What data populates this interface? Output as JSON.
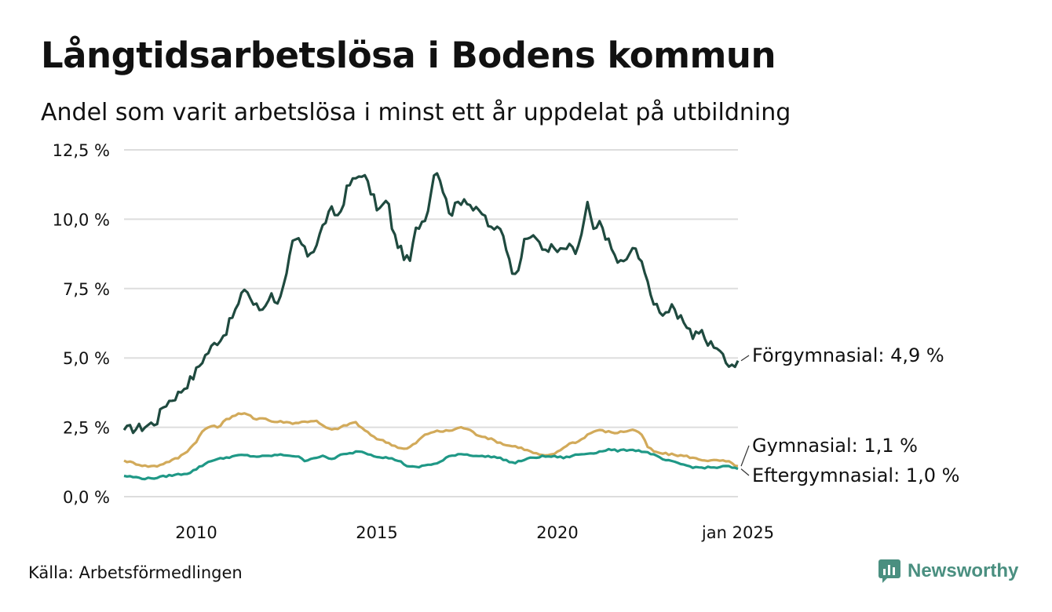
{
  "title": "Långtidsarbetslösa i Bodens kommun",
  "subtitle": "Andel som varit arbetslösa i minst ett år uppdelat på utbildning",
  "source": "Källa: Arbetsförmedlingen",
  "brand": "Newsworthy",
  "icons": {
    "brand_logo": "newsworthy-logo-icon"
  },
  "colors": {
    "forgymnasial": "#1f4a3f",
    "gymnasial": "#d2aa5a",
    "eftergymnasial": "#1f9886",
    "grid": "#dddddd",
    "brand": "#4a8f80"
  },
  "chart_data": {
    "type": "line",
    "title": "Långtidsarbetslösa i Bodens kommun",
    "subtitle": "Andel som varit arbetslösa i minst ett år uppdelat på utbildning",
    "xlabel": "",
    "ylabel": "",
    "x_start": [
      2008,
      1
    ],
    "x_end": [
      2025,
      1
    ],
    "x_frequency": "monthly",
    "xlim": [
      2008.0,
      2025.0
    ],
    "ylim": [
      0,
      12.5
    ],
    "y_ticks": [
      0,
      2.5,
      5.0,
      7.5,
      10.0,
      12.5
    ],
    "y_tick_labels": [
      "0,0 %",
      "2,5 %",
      "5,0 %",
      "7,5 %",
      "10,0 %",
      "12,5 %"
    ],
    "x_ticks": [
      2010,
      2015,
      2020,
      2025
    ],
    "x_tick_labels": [
      "2010",
      "2015",
      "2020",
      "jan 2025"
    ],
    "grid": true,
    "series": [
      {
        "name": "Förgymnasial",
        "label": "Förgymnasial: 4,9 %",
        "last_value": 4.9,
        "color": "#1f4a3f",
        "anchors": [
          [
            2008.0,
            2.4
          ],
          [
            2008.5,
            2.5
          ],
          [
            2008.9,
            2.7
          ],
          [
            2009.1,
            3.3
          ],
          [
            2009.5,
            3.7
          ],
          [
            2009.9,
            4.3
          ],
          [
            2010.2,
            5.0
          ],
          [
            2010.5,
            5.5
          ],
          [
            2010.8,
            5.9
          ],
          [
            2011.0,
            6.5
          ],
          [
            2011.2,
            7.0
          ],
          [
            2011.35,
            7.6
          ],
          [
            2011.55,
            7.0
          ],
          [
            2011.8,
            6.7
          ],
          [
            2012.05,
            7.3
          ],
          [
            2012.3,
            7.0
          ],
          [
            2012.5,
            7.9
          ],
          [
            2012.65,
            9.1
          ],
          [
            2012.85,
            9.3
          ],
          [
            2013.05,
            8.7
          ],
          [
            2013.3,
            9.0
          ],
          [
            2013.55,
            9.9
          ],
          [
            2013.75,
            10.3
          ],
          [
            2013.95,
            10.1
          ],
          [
            2014.2,
            11.2
          ],
          [
            2014.45,
            11.5
          ],
          [
            2014.6,
            11.7
          ],
          [
            2014.8,
            11.1
          ],
          [
            2015.05,
            10.3
          ],
          [
            2015.3,
            10.7
          ],
          [
            2015.45,
            9.5
          ],
          [
            2015.65,
            8.9
          ],
          [
            2015.9,
            8.4
          ],
          [
            2016.1,
            9.7
          ],
          [
            2016.3,
            10.0
          ],
          [
            2016.45,
            10.5
          ],
          [
            2016.6,
            11.9
          ],
          [
            2016.75,
            11.5
          ],
          [
            2016.9,
            10.7
          ],
          [
            2017.05,
            10.2
          ],
          [
            2017.25,
            10.6
          ],
          [
            2017.45,
            10.8
          ],
          [
            2017.7,
            10.3
          ],
          [
            2017.95,
            10.2
          ],
          [
            2018.2,
            9.5
          ],
          [
            2018.4,
            9.8
          ],
          [
            2018.55,
            9.3
          ],
          [
            2018.7,
            8.2
          ],
          [
            2018.9,
            8.2
          ],
          [
            2019.1,
            9.2
          ],
          [
            2019.35,
            9.5
          ],
          [
            2019.55,
            8.9
          ],
          [
            2019.8,
            9.0
          ],
          [
            2020.05,
            8.8
          ],
          [
            2020.3,
            9.0
          ],
          [
            2020.5,
            8.8
          ],
          [
            2020.65,
            9.3
          ],
          [
            2020.85,
            10.6
          ],
          [
            2021.0,
            9.5
          ],
          [
            2021.2,
            9.9
          ],
          [
            2021.4,
            9.2
          ],
          [
            2021.65,
            8.5
          ],
          [
            2021.85,
            8.4
          ],
          [
            2022.0,
            8.8
          ],
          [
            2022.2,
            8.9
          ],
          [
            2022.35,
            8.5
          ],
          [
            2022.55,
            7.3
          ],
          [
            2022.75,
            6.9
          ],
          [
            2022.95,
            6.6
          ],
          [
            2023.15,
            6.8
          ],
          [
            2023.35,
            6.4
          ],
          [
            2023.55,
            6.3
          ],
          [
            2023.75,
            5.8
          ],
          [
            2023.95,
            6.0
          ],
          [
            2024.15,
            5.5
          ],
          [
            2024.35,
            5.5
          ],
          [
            2024.5,
            5.3
          ],
          [
            2024.65,
            4.8
          ],
          [
            2024.85,
            4.9
          ],
          [
            2024.95,
            4.6
          ],
          [
            2025.0,
            4.9
          ]
        ]
      },
      {
        "name": "Gymnasial",
        "label": "Gymnasial: 1,1 %",
        "last_value": 1.1,
        "color": "#d2aa5a",
        "anchors": [
          [
            2008.0,
            1.3
          ],
          [
            2008.3,
            1.2
          ],
          [
            2008.6,
            1.1
          ],
          [
            2008.9,
            1.1
          ],
          [
            2009.2,
            1.25
          ],
          [
            2009.5,
            1.4
          ],
          [
            2009.8,
            1.7
          ],
          [
            2010.0,
            2.0
          ],
          [
            2010.2,
            2.4
          ],
          [
            2010.4,
            2.55
          ],
          [
            2010.6,
            2.5
          ],
          [
            2010.8,
            2.75
          ],
          [
            2011.0,
            2.9
          ],
          [
            2011.2,
            3.0
          ],
          [
            2011.45,
            2.95
          ],
          [
            2011.6,
            2.8
          ],
          [
            2011.85,
            2.85
          ],
          [
            2012.1,
            2.7
          ],
          [
            2012.4,
            2.7
          ],
          [
            2012.7,
            2.65
          ],
          [
            2013.0,
            2.7
          ],
          [
            2013.3,
            2.75
          ],
          [
            2013.5,
            2.55
          ],
          [
            2013.75,
            2.4
          ],
          [
            2014.0,
            2.5
          ],
          [
            2014.2,
            2.6
          ],
          [
            2014.4,
            2.7
          ],
          [
            2014.55,
            2.5
          ],
          [
            2014.75,
            2.3
          ],
          [
            2015.0,
            2.1
          ],
          [
            2015.3,
            1.95
          ],
          [
            2015.55,
            1.8
          ],
          [
            2015.8,
            1.7
          ],
          [
            2016.05,
            1.9
          ],
          [
            2016.3,
            2.2
          ],
          [
            2016.55,
            2.35
          ],
          [
            2016.8,
            2.35
          ],
          [
            2017.1,
            2.4
          ],
          [
            2017.3,
            2.5
          ],
          [
            2017.5,
            2.45
          ],
          [
            2017.75,
            2.25
          ],
          [
            2018.0,
            2.15
          ],
          [
            2018.3,
            2.0
          ],
          [
            2018.6,
            1.85
          ],
          [
            2018.9,
            1.8
          ],
          [
            2019.1,
            1.7
          ],
          [
            2019.4,
            1.55
          ],
          [
            2019.7,
            1.45
          ],
          [
            2020.0,
            1.6
          ],
          [
            2020.3,
            1.9
          ],
          [
            2020.6,
            2.0
          ],
          [
            2020.85,
            2.25
          ],
          [
            2021.1,
            2.4
          ],
          [
            2021.35,
            2.35
          ],
          [
            2021.6,
            2.3
          ],
          [
            2021.85,
            2.35
          ],
          [
            2022.0,
            2.4
          ],
          [
            2022.15,
            2.4
          ],
          [
            2022.3,
            2.3
          ],
          [
            2022.5,
            1.8
          ],
          [
            2022.7,
            1.6
          ],
          [
            2022.95,
            1.55
          ],
          [
            2023.3,
            1.5
          ],
          [
            2023.6,
            1.45
          ],
          [
            2023.9,
            1.35
          ],
          [
            2024.2,
            1.3
          ],
          [
            2024.5,
            1.3
          ],
          [
            2024.75,
            1.25
          ],
          [
            2024.9,
            1.15
          ],
          [
            2025.0,
            1.1
          ]
        ]
      },
      {
        "name": "Eftergymnasial",
        "label": "Eftergymnasial: 1,0 %",
        "last_value": 1.0,
        "color": "#1f9886",
        "anchors": [
          [
            2008.0,
            0.75
          ],
          [
            2008.3,
            0.7
          ],
          [
            2008.6,
            0.65
          ],
          [
            2008.9,
            0.68
          ],
          [
            2009.2,
            0.75
          ],
          [
            2009.5,
            0.8
          ],
          [
            2009.8,
            0.85
          ],
          [
            2010.0,
            1.0
          ],
          [
            2010.2,
            1.15
          ],
          [
            2010.4,
            1.3
          ],
          [
            2010.6,
            1.35
          ],
          [
            2010.8,
            1.4
          ],
          [
            2011.0,
            1.45
          ],
          [
            2011.3,
            1.5
          ],
          [
            2011.6,
            1.45
          ],
          [
            2011.9,
            1.45
          ],
          [
            2012.2,
            1.5
          ],
          [
            2012.5,
            1.5
          ],
          [
            2012.8,
            1.45
          ],
          [
            2013.0,
            1.3
          ],
          [
            2013.25,
            1.4
          ],
          [
            2013.5,
            1.45
          ],
          [
            2013.75,
            1.35
          ],
          [
            2014.0,
            1.5
          ],
          [
            2014.25,
            1.55
          ],
          [
            2014.5,
            1.65
          ],
          [
            2014.75,
            1.55
          ],
          [
            2015.0,
            1.45
          ],
          [
            2015.3,
            1.4
          ],
          [
            2015.6,
            1.3
          ],
          [
            2015.85,
            1.1
          ],
          [
            2016.1,
            1.05
          ],
          [
            2016.4,
            1.15
          ],
          [
            2016.7,
            1.2
          ],
          [
            2017.0,
            1.45
          ],
          [
            2017.3,
            1.55
          ],
          [
            2017.6,
            1.5
          ],
          [
            2017.9,
            1.45
          ],
          [
            2018.2,
            1.45
          ],
          [
            2018.5,
            1.35
          ],
          [
            2018.8,
            1.2
          ],
          [
            2019.0,
            1.3
          ],
          [
            2019.3,
            1.4
          ],
          [
            2019.6,
            1.45
          ],
          [
            2019.9,
            1.45
          ],
          [
            2020.2,
            1.4
          ],
          [
            2020.5,
            1.5
          ],
          [
            2020.8,
            1.55
          ],
          [
            2021.1,
            1.6
          ],
          [
            2021.4,
            1.7
          ],
          [
            2021.7,
            1.65
          ],
          [
            2022.0,
            1.7
          ],
          [
            2022.3,
            1.65
          ],
          [
            2022.6,
            1.55
          ],
          [
            2022.9,
            1.35
          ],
          [
            2023.2,
            1.25
          ],
          [
            2023.5,
            1.15
          ],
          [
            2023.8,
            1.05
          ],
          [
            2024.1,
            1.05
          ],
          [
            2024.4,
            1.05
          ],
          [
            2024.7,
            1.1
          ],
          [
            2024.85,
            1.05
          ],
          [
            2025.0,
            1.0
          ]
        ]
      }
    ]
  }
}
